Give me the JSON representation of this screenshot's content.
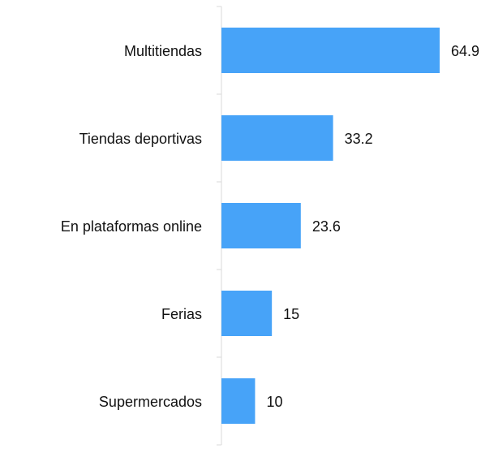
{
  "chart_data": {
    "type": "bar",
    "orientation": "horizontal",
    "categories": [
      "Multitiendas",
      "Tiendas deportivas",
      "En plataformas online",
      "Ferias",
      "Supermercados"
    ],
    "values": [
      64.9,
      33.2,
      23.6,
      15,
      10
    ],
    "color": "#47a3f8"
  }
}
